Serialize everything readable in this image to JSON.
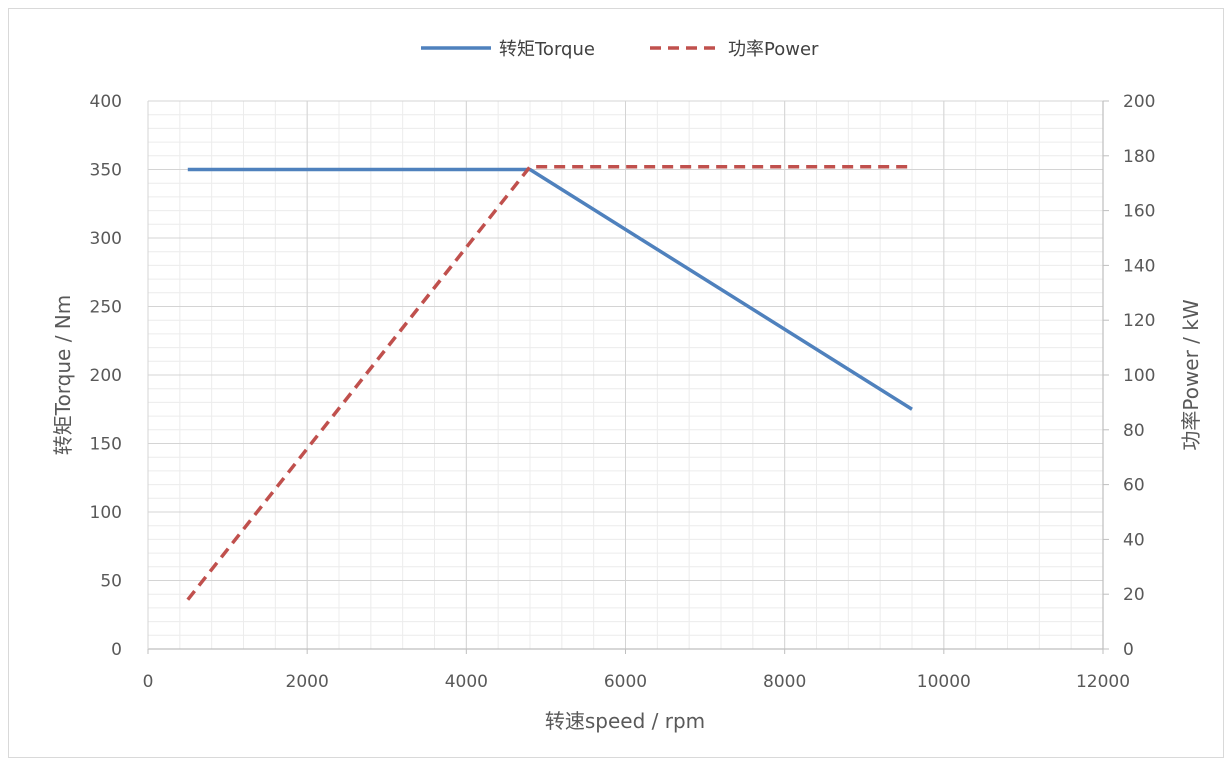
{
  "chart_data": {
    "type": "line",
    "title": "",
    "xlabel": "转速speed / rpm",
    "ylabel": "转矩Torque / Nm",
    "y2label": "功率Power / kW",
    "xlim": [
      0,
      12000
    ],
    "ylim": [
      0,
      400
    ],
    "y2lim": [
      0,
      200
    ],
    "x_ticks": [
      "0",
      "2000",
      "4000",
      "6000",
      "8000",
      "10000",
      "12000"
    ],
    "y_ticks": [
      "0",
      "50",
      "100",
      "150",
      "200",
      "250",
      "300",
      "350",
      "400"
    ],
    "y2_ticks": [
      "0",
      "20",
      "40",
      "60",
      "80",
      "100",
      "120",
      "140",
      "160",
      "180",
      "200"
    ],
    "grid": true,
    "legend_position": "top-center",
    "series": [
      {
        "name": "转矩Torque",
        "axis": "left",
        "style": "solid",
        "color": "#4f81bd",
        "x": [
          500,
          4800,
          9600
        ],
        "y": [
          350,
          350,
          175
        ]
      },
      {
        "name": "功率Power",
        "axis": "right",
        "style": "dashed",
        "color": "#c0504d",
        "x": [
          500,
          4800,
          9600
        ],
        "y": [
          18,
          176,
          176
        ]
      }
    ]
  }
}
